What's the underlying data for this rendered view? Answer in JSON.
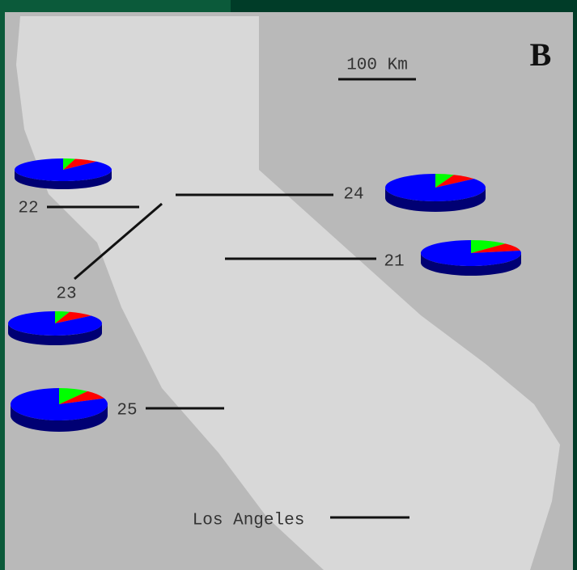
{
  "scale_label": "100 Km",
  "panel_label": "B",
  "place_label": "Los Angeles",
  "slice_colors": [
    "#00ff00",
    "#ff0000",
    "#0000ff"
  ],
  "sites": [
    {
      "label": "22",
      "values": [
        4,
        8,
        88
      ]
    },
    {
      "label": "24",
      "values": [
        6,
        8,
        86
      ]
    },
    {
      "label": "21",
      "values": [
        12,
        10,
        78
      ]
    },
    {
      "label": "23",
      "values": [
        5,
        9,
        86
      ]
    },
    {
      "label": "25",
      "values": [
        10,
        9,
        81
      ]
    }
  ]
}
